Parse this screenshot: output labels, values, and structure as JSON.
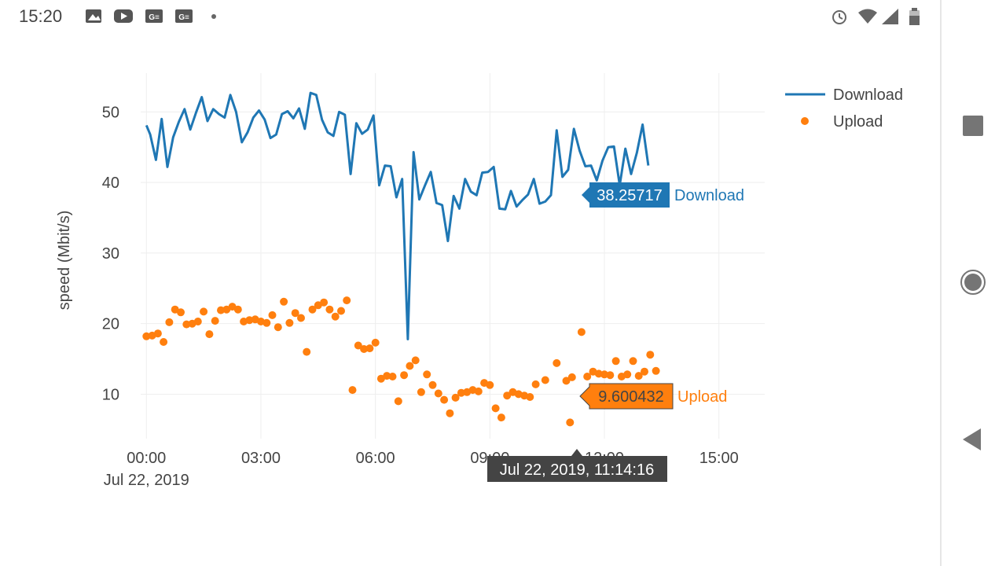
{
  "status_bar": {
    "time": "15:20",
    "left_icons": [
      "image-icon",
      "youtube-icon",
      "news-icon",
      "news-icon",
      "dot-icon"
    ],
    "right_icons": [
      "alarm-icon",
      "wifi-icon",
      "signal-icon",
      "battery-icon"
    ]
  },
  "nav_bar": {
    "buttons": [
      "recents-button",
      "home-button",
      "back-button"
    ]
  },
  "colors": {
    "download": "#1f77b4",
    "upload": "#ff7f0e",
    "grid": "#eeeeee",
    "tick_text": "#444444",
    "tooltip_dark": "#444444"
  },
  "chart_data": {
    "type": "line",
    "ylabel": "speed (Mbit/s)",
    "xlabel": "",
    "x_ticks": [
      {
        "x": 0,
        "label": "00:00",
        "sublabel": "Jul 22, 2019"
      },
      {
        "x": 3,
        "label": "03:00"
      },
      {
        "x": 6,
        "label": "06:00"
      },
      {
        "x": 9,
        "label": "09:00"
      },
      {
        "x": 12,
        "label": "12:00"
      },
      {
        "x": 15,
        "label": "15:00"
      }
    ],
    "y_ticks": [
      10,
      20,
      30,
      40,
      50
    ],
    "xlim": [
      -0.15,
      16.2
    ],
    "ylim": [
      3.7,
      55.5
    ],
    "legend_position": "top-right",
    "series": [
      {
        "name": "Download",
        "mode": "lines",
        "color": "#1f77b4",
        "points": [
          [
            0.0,
            48.1
          ],
          [
            0.1,
            46.8
          ],
          [
            0.25,
            43.2
          ],
          [
            0.4,
            49.0
          ],
          [
            0.55,
            42.2
          ],
          [
            0.7,
            46.4
          ],
          [
            0.85,
            48.6
          ],
          [
            1.0,
            50.4
          ],
          [
            1.15,
            47.5
          ],
          [
            1.3,
            49.9
          ],
          [
            1.45,
            52.1
          ],
          [
            1.6,
            48.7
          ],
          [
            1.75,
            50.4
          ],
          [
            1.9,
            49.7
          ],
          [
            2.05,
            49.2
          ],
          [
            2.2,
            52.4
          ],
          [
            2.35,
            50.0
          ],
          [
            2.5,
            45.7
          ],
          [
            2.65,
            47.1
          ],
          [
            2.8,
            49.2
          ],
          [
            2.95,
            50.2
          ],
          [
            3.1,
            48.9
          ],
          [
            3.25,
            46.3
          ],
          [
            3.4,
            46.8
          ],
          [
            3.55,
            49.7
          ],
          [
            3.7,
            50.1
          ],
          [
            3.85,
            49.1
          ],
          [
            4.0,
            50.5
          ],
          [
            4.15,
            47.6
          ],
          [
            4.3,
            52.7
          ],
          [
            4.45,
            52.4
          ],
          [
            4.6,
            48.9
          ],
          [
            4.75,
            47.1
          ],
          [
            4.9,
            46.6
          ],
          [
            5.05,
            50.0
          ],
          [
            5.2,
            49.6
          ],
          [
            5.35,
            41.2
          ],
          [
            5.5,
            48.4
          ],
          [
            5.65,
            46.9
          ],
          [
            5.8,
            47.5
          ],
          [
            5.95,
            49.5
          ],
          [
            6.1,
            39.6
          ],
          [
            6.25,
            42.4
          ],
          [
            6.4,
            42.3
          ],
          [
            6.55,
            37.9
          ],
          [
            6.7,
            40.5
          ],
          [
            6.85,
            17.8
          ],
          [
            7.0,
            44.3
          ],
          [
            7.15,
            37.6
          ],
          [
            7.3,
            39.6
          ],
          [
            7.45,
            41.5
          ],
          [
            7.6,
            37.1
          ],
          [
            7.75,
            36.8
          ],
          [
            7.9,
            31.7
          ],
          [
            8.05,
            38.1
          ],
          [
            8.2,
            36.3
          ],
          [
            8.35,
            40.5
          ],
          [
            8.5,
            38.7
          ],
          [
            8.65,
            38.2
          ],
          [
            8.8,
            41.4
          ],
          [
            8.95,
            41.5
          ],
          [
            9.1,
            42.2
          ],
          [
            9.25,
            36.3
          ],
          [
            9.4,
            36.2
          ],
          [
            9.55,
            38.8
          ],
          [
            9.7,
            36.6
          ],
          [
            9.85,
            37.5
          ],
          [
            10.0,
            38.3
          ],
          [
            10.15,
            40.5
          ],
          [
            10.3,
            37.0
          ],
          [
            10.45,
            37.3
          ],
          [
            10.6,
            38.2
          ],
          [
            10.75,
            47.4
          ],
          [
            10.9,
            40.8
          ],
          [
            11.05,
            41.8
          ],
          [
            11.2,
            47.6
          ],
          [
            11.35,
            44.5
          ],
          [
            11.5,
            42.3
          ],
          [
            11.65,
            42.4
          ],
          [
            11.8,
            40.3
          ],
          [
            11.95,
            43.1
          ],
          [
            12.1,
            45.0
          ],
          [
            12.25,
            45.1
          ],
          [
            12.4,
            39.6
          ],
          [
            12.55,
            44.8
          ],
          [
            12.7,
            41.2
          ],
          [
            12.85,
            44.2
          ],
          [
            13.0,
            48.2
          ],
          [
            13.15,
            42.4
          ]
        ]
      },
      {
        "name": "Upload",
        "mode": "markers",
        "color": "#ff7f0e",
        "points": [
          [
            0.0,
            18.2
          ],
          [
            0.15,
            18.3
          ],
          [
            0.3,
            18.6
          ],
          [
            0.45,
            17.4
          ],
          [
            0.6,
            20.2
          ],
          [
            0.75,
            22.0
          ],
          [
            0.9,
            21.6
          ],
          [
            1.05,
            19.9
          ],
          [
            1.2,
            20.0
          ],
          [
            1.35,
            20.3
          ],
          [
            1.5,
            21.7
          ],
          [
            1.65,
            18.5
          ],
          [
            1.8,
            20.4
          ],
          [
            1.95,
            21.9
          ],
          [
            2.1,
            22.0
          ],
          [
            2.25,
            22.4
          ],
          [
            2.4,
            22.0
          ],
          [
            2.55,
            20.3
          ],
          [
            2.7,
            20.5
          ],
          [
            2.85,
            20.6
          ],
          [
            3.0,
            20.3
          ],
          [
            3.15,
            20.1
          ],
          [
            3.3,
            21.2
          ],
          [
            3.45,
            19.5
          ],
          [
            3.6,
            23.1
          ],
          [
            3.75,
            20.1
          ],
          [
            3.9,
            21.5
          ],
          [
            4.05,
            20.8
          ],
          [
            4.2,
            16.0
          ],
          [
            4.35,
            22.0
          ],
          [
            4.5,
            22.6
          ],
          [
            4.65,
            23.0
          ],
          [
            4.8,
            22.0
          ],
          [
            4.95,
            21.0
          ],
          [
            5.1,
            21.8
          ],
          [
            5.25,
            23.3
          ],
          [
            5.4,
            10.6
          ],
          [
            5.55,
            16.9
          ],
          [
            5.7,
            16.4
          ],
          [
            5.85,
            16.5
          ],
          [
            6.0,
            17.3
          ],
          [
            6.15,
            12.2
          ],
          [
            6.3,
            12.6
          ],
          [
            6.45,
            12.5
          ],
          [
            6.6,
            9.0
          ],
          [
            6.75,
            12.7
          ],
          [
            6.9,
            14.0
          ],
          [
            7.05,
            14.8
          ],
          [
            7.2,
            10.3
          ],
          [
            7.35,
            12.8
          ],
          [
            7.5,
            11.3
          ],
          [
            7.65,
            10.1
          ],
          [
            7.8,
            9.2
          ],
          [
            7.95,
            7.3
          ],
          [
            8.1,
            9.5
          ],
          [
            8.25,
            10.2
          ],
          [
            8.4,
            10.3
          ],
          [
            8.55,
            10.6
          ],
          [
            8.7,
            10.4
          ],
          [
            8.85,
            11.6
          ],
          [
            9.0,
            11.3
          ],
          [
            9.15,
            8.0
          ],
          [
            9.3,
            6.7
          ],
          [
            9.45,
            9.8
          ],
          [
            9.6,
            10.3
          ],
          [
            9.75,
            10.0
          ],
          [
            9.9,
            9.8
          ],
          [
            10.05,
            9.6
          ],
          [
            10.2,
            11.4
          ],
          [
            10.45,
            12.0
          ],
          [
            11.1,
            6.0
          ],
          [
            10.75,
            14.4
          ],
          [
            11.0,
            11.9
          ],
          [
            11.15,
            12.4
          ],
          [
            11.4,
            18.8
          ],
          [
            11.55,
            12.5
          ],
          [
            11.7,
            13.2
          ],
          [
            11.85,
            12.9
          ],
          [
            12.0,
            12.8
          ],
          [
            12.15,
            12.7
          ],
          [
            12.3,
            14.7
          ],
          [
            12.45,
            12.5
          ],
          [
            12.6,
            12.8
          ],
          [
            12.75,
            14.7
          ],
          [
            12.9,
            12.6
          ],
          [
            13.05,
            13.2
          ],
          [
            13.2,
            15.6
          ],
          [
            13.35,
            13.3
          ]
        ]
      }
    ],
    "hover": {
      "x_label": "Jul 22, 2019, 11:14:16",
      "download_value": "38.25717",
      "download_name": "Download",
      "upload_value": "9.600432",
      "upload_name": "Upload"
    }
  }
}
